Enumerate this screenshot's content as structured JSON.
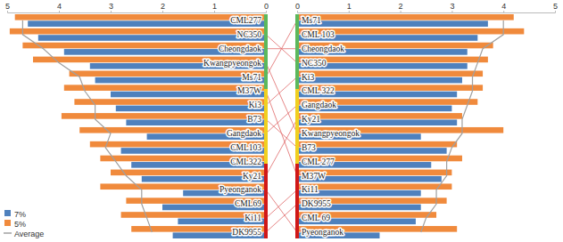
{
  "chart_data": [
    {
      "type": "bar",
      "orientation": "horizontal",
      "legend": "bottom-left",
      "categories": [
        "CML277",
        "NC350",
        "Cheongdaok",
        "Kwangpyeongok",
        "Ms71",
        "M37W",
        "Ki3",
        "B73",
        "Gangdaok",
        "CML103",
        "CML322",
        "Ky21",
        "Pyeonganok",
        "CML69",
        "Ki11",
        "DK9955"
      ],
      "xlim": [
        5,
        0
      ],
      "xticks": [
        5,
        4,
        3,
        2,
        1,
        0
      ],
      "series": [
        {
          "name": "7%",
          "color": "#4f81bd",
          "values": [
            4.6,
            4.4,
            3.9,
            3.4,
            3.3,
            3.0,
            2.9,
            2.7,
            2.3,
            2.8,
            2.6,
            2.4,
            1.6,
            2.0,
            1.7,
            1.8
          ]
        },
        {
          "name": "5%",
          "color": "#f08a3c",
          "values": [
            4.85,
            4.95,
            4.7,
            4.5,
            3.8,
            3.9,
            3.7,
            3.95,
            3.6,
            3.4,
            3.2,
            3.0,
            3.2,
            2.7,
            2.8,
            2.6
          ]
        },
        {
          "name": "Average",
          "type": "line",
          "color": "#a0a0a0",
          "values": [
            4.7,
            4.7,
            4.3,
            4.0,
            3.6,
            3.5,
            3.3,
            3.3,
            3.0,
            3.1,
            2.9,
            2.7,
            2.4,
            2.4,
            2.3,
            2.2
          ]
        }
      ]
    },
    {
      "type": "bar",
      "orientation": "horizontal",
      "categories": [
        "Ms71",
        "CML 103",
        "Cheongdaok",
        "NC350",
        "Ki3",
        "CML 322",
        "Gangdaok",
        "Ky21",
        "Kwangpyeongok",
        "B73",
        "CML 277",
        "M37W",
        "Ki11",
        "DK9955",
        "CML 69",
        "Pyeonganok"
      ],
      "xlim": [
        0,
        5
      ],
      "xticks": [
        0,
        1,
        2,
        3,
        4,
        5
      ],
      "series": [
        {
          "name": "7%",
          "color": "#4f81bd",
          "values": [
            3.7,
            3.5,
            3.3,
            3.3,
            3.2,
            3.1,
            3.0,
            3.1,
            2.4,
            2.9,
            2.6,
            2.8,
            2.4,
            2.4,
            2.3,
            1.6
          ]
        },
        {
          "name": "5%",
          "color": "#f08a3c",
          "values": [
            4.2,
            4.4,
            3.8,
            3.7,
            3.6,
            3.6,
            3.5,
            3.2,
            4.0,
            3.1,
            3.2,
            3.0,
            3.0,
            2.9,
            2.7,
            3.1
          ]
        },
        {
          "name": "Average",
          "type": "line",
          "color": "#a0a0a0",
          "values": [
            4.0,
            4.0,
            3.6,
            3.5,
            3.4,
            3.4,
            3.3,
            3.2,
            3.2,
            3.0,
            2.9,
            2.9,
            2.7,
            2.7,
            2.5,
            2.4
          ]
        }
      ]
    }
  ]
}
